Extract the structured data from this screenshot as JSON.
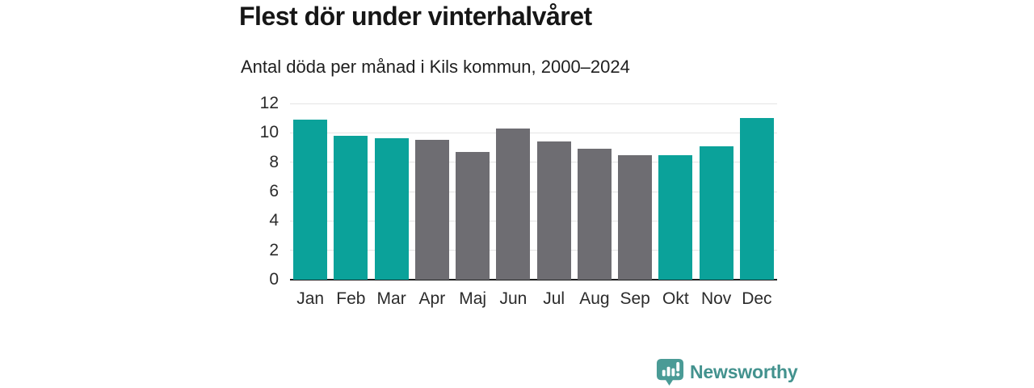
{
  "title": "Flest dör under vinterhalvåret",
  "subtitle": "Antal döda per månad i Kils kommun, 2000–2024",
  "branding": {
    "logo_text": "Newsworthy",
    "logo_icon": "speech-bubble-bar-chart-exclamation",
    "logo_icon_color": "#4a9b96",
    "logo_text_color": "#43928e"
  },
  "colors": {
    "winter": "#0ba29a",
    "summer": "#6e6d72",
    "gridline": "#e4e4e4",
    "axis": "#1f1f1f",
    "tick_text": "#2b2b2b"
  },
  "chart_data": {
    "type": "bar",
    "title": "Flest dör under vinterhalvåret",
    "subtitle": "Antal döda per månad i Kils kommun, 2000–2024",
    "categories": [
      "Jan",
      "Feb",
      "Mar",
      "Apr",
      "Maj",
      "Jun",
      "Jul",
      "Aug",
      "Sep",
      "Okt",
      "Nov",
      "Dec"
    ],
    "values": [
      10.9,
      9.8,
      9.65,
      9.55,
      8.7,
      10.3,
      9.4,
      8.9,
      8.5,
      8.5,
      9.1,
      11.0
    ],
    "bar_color_keys": [
      "winter",
      "winter",
      "winter",
      "summer",
      "summer",
      "summer",
      "summer",
      "summer",
      "summer",
      "winter",
      "winter",
      "winter"
    ],
    "xlabel": "",
    "ylabel": "",
    "ylim": [
      0,
      12
    ],
    "yticks": [
      0,
      2,
      4,
      6,
      8,
      10,
      12
    ],
    "grid": "horizontal-even-ticks",
    "legend": "none"
  }
}
